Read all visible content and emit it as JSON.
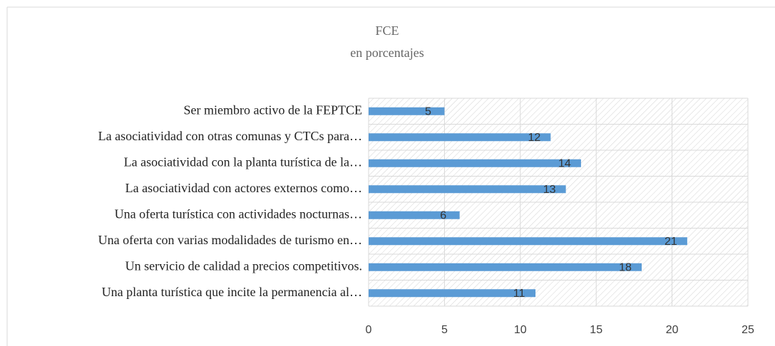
{
  "chart_data": {
    "type": "bar",
    "orientation": "horizontal",
    "title": "FCE",
    "subtitle": "en porcentajes",
    "categories": [
      "Ser miembro activo de la FEPTCE",
      "La asociatividad con otras comunas y CTCs para…",
      "La asociatividad con la planta turística de la…",
      "La asociatividad con actores externos como…",
      "Una oferta turística con actividades nocturnas…",
      "Una oferta con varias modalidades de turismo en…",
      "Un servicio de calidad a precios competitivos.",
      "Una planta turística que incite la permanencia al…"
    ],
    "values": [
      5,
      12,
      14,
      13,
      6,
      21,
      18,
      11
    ],
    "color": "#5b9bd5",
    "xlim": [
      0,
      25
    ],
    "xticks": [
      0,
      5,
      10,
      15,
      20,
      25
    ],
    "grid": true
  }
}
